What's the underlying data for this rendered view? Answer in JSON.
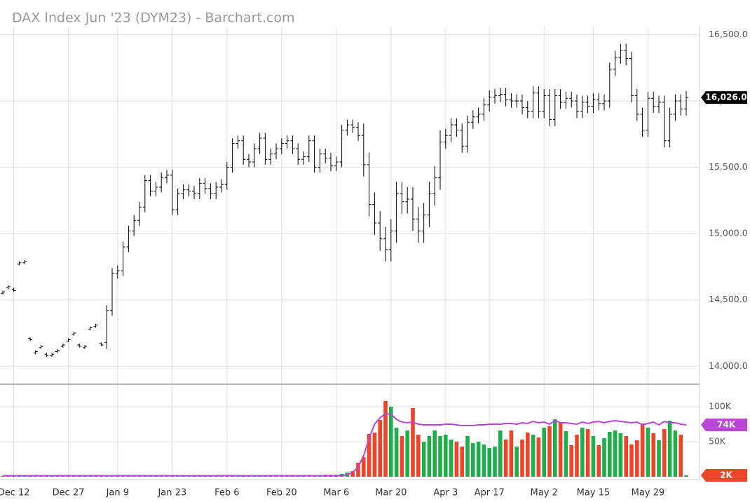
{
  "chart_data": {
    "type": "ohlc",
    "title": "DAX Index Jun '23 (DYM23) - Barchart.com",
    "categories": [
      null,
      null,
      "Dec 12",
      null,
      null,
      null,
      null,
      null,
      null,
      null,
      null,
      null,
      "Dec 27",
      null,
      null,
      null,
      null,
      null,
      null,
      null,
      null,
      "Jan 9",
      null,
      null,
      null,
      null,
      null,
      null,
      null,
      null,
      null,
      "Jan 23",
      null,
      null,
      null,
      null,
      null,
      null,
      null,
      null,
      null,
      "Feb 6",
      null,
      null,
      null,
      null,
      null,
      null,
      null,
      null,
      null,
      "Feb 20",
      null,
      null,
      null,
      null,
      null,
      null,
      null,
      null,
      null,
      "Mar 6",
      null,
      null,
      null,
      null,
      null,
      null,
      null,
      null,
      null,
      "Mar 20",
      null,
      null,
      null,
      null,
      null,
      null,
      null,
      null,
      null,
      "Apr 3",
      null,
      null,
      null,
      null,
      null,
      null,
      null,
      "Apr 17",
      null,
      null,
      null,
      null,
      null,
      null,
      null,
      null,
      null,
      "May 2",
      null,
      null,
      null,
      null,
      null,
      null,
      null,
      null,
      "May 15",
      null,
      null,
      null,
      null,
      null,
      null,
      null,
      null,
      null,
      "May 29",
      null,
      null,
      null,
      null,
      null,
      null,
      null
    ],
    "open": [
      14550,
      14590,
      14580,
      14770,
      14780,
      14210,
      14100,
      14140,
      14090,
      14080,
      14110,
      14150,
      14190,
      14240,
      14160,
      14140,
      14280,
      14300,
      14170,
      14180,
      14420,
      14700,
      14720,
      14900,
      15020,
      15100,
      15200,
      15400,
      15320,
      15350,
      15420,
      15440,
      15180,
      15300,
      15330,
      15320,
      15300,
      15380,
      15340,
      15300,
      15350,
      15370,
      15500,
      15680,
      15700,
      15560,
      15540,
      15640,
      15720,
      15560,
      15600,
      15640,
      15680,
      15700,
      15640,
      15560,
      15580,
      15700,
      15500,
      15600,
      15570,
      15510,
      15540,
      15780,
      15820,
      15800,
      15740,
      15520,
      15220,
      15080,
      14960,
      14880,
      15020,
      15300,
      15240,
      15260,
      15110,
      15020,
      15140,
      15300,
      15420,
      15690,
      15740,
      15820,
      15780,
      15660,
      15840,
      15880,
      15900,
      15970,
      16030,
      16040,
      16050,
      16010,
      16000,
      16000,
      15950,
      15920,
      16060,
      15920,
      16040,
      15860,
      16040,
      15990,
      16020,
      16000,
      15920,
      15990,
      15960,
      16010,
      15980,
      16000,
      16240,
      16330,
      16380,
      16320,
      16040,
      15900,
      15780,
      16020,
      15960,
      15990,
      15700,
      15900,
      16000,
      15940
    ],
    "high": [
      14570,
      14610,
      14590,
      14790,
      14800,
      14220,
      14120,
      14160,
      14100,
      14100,
      14130,
      14170,
      14210,
      14260,
      14170,
      14160,
      14300,
      14320,
      14180,
      14460,
      14740,
      14760,
      14940,
      15060,
      15140,
      15240,
      15440,
      15440,
      15390,
      15460,
      15480,
      15480,
      15340,
      15370,
      15370,
      15360,
      15420,
      15420,
      15380,
      15390,
      15410,
      15540,
      15720,
      15740,
      15740,
      15600,
      15680,
      15760,
      15760,
      15640,
      15680,
      15720,
      15740,
      15740,
      15680,
      15620,
      15740,
      15740,
      15640,
      15640,
      15610,
      15580,
      15820,
      15860,
      15860,
      15840,
      15830,
      15610,
      15310,
      15170,
      15050,
      15110,
      15390,
      15390,
      15350,
      15350,
      15200,
      15230,
      15390,
      15510,
      15780,
      15790,
      15870,
      15870,
      15830,
      15890,
      15930,
      15950,
      16020,
      16080,
      16090,
      16100,
      16100,
      16060,
      16050,
      16050,
      16000,
      16110,
      16110,
      16090,
      16090,
      16090,
      16090,
      16070,
      16070,
      16050,
      16040,
      16040,
      16060,
      16060,
      16050,
      16290,
      16380,
      16430,
      16430,
      16370,
      16090,
      15950,
      16070,
      16070,
      16040,
      16040,
      15950,
      16050,
      16050,
      16076
    ],
    "low": [
      14540,
      14580,
      14560,
      14760,
      14770,
      14190,
      14090,
      14130,
      14070,
      14070,
      14100,
      14140,
      14180,
      14230,
      14140,
      14130,
      14270,
      14290,
      14150,
      14130,
      14380,
      14660,
      14680,
      14860,
      14980,
      15060,
      15160,
      15280,
      15280,
      15310,
      15380,
      15140,
      15140,
      15260,
      15280,
      15260,
      15260,
      15300,
      15260,
      15260,
      15310,
      15330,
      15460,
      15640,
      15520,
      15500,
      15500,
      15600,
      15520,
      15520,
      15560,
      15600,
      15640,
      15600,
      15520,
      15520,
      15540,
      15460,
      15460,
      15530,
      15470,
      15470,
      15500,
      15740,
      15760,
      15700,
      15430,
      15130,
      14990,
      14870,
      14790,
      14790,
      14930,
      15150,
      15150,
      15020,
      14930,
      14930,
      15050,
      15210,
      15330,
      15640,
      15690,
      15730,
      15610,
      15610,
      15790,
      15830,
      15850,
      15920,
      15980,
      15990,
      15960,
      15950,
      15950,
      15900,
      15870,
      15870,
      15870,
      15870,
      15810,
      15810,
      15940,
      15940,
      15950,
      15870,
      15870,
      15910,
      15910,
      15930,
      15930,
      15950,
      16190,
      16280,
      16270,
      15990,
      15850,
      15730,
      15730,
      15910,
      15910,
      15650,
      15650,
      15850,
      15890,
      15890
    ],
    "close": [
      14560,
      14600,
      14570,
      14780,
      14790,
      14200,
      14110,
      14150,
      14080,
      14090,
      14120,
      14160,
      14200,
      14250,
      14150,
      14150,
      14290,
      14310,
      14160,
      14420,
      14700,
      14720,
      14900,
      15020,
      15100,
      15200,
      15400,
      15320,
      15350,
      15420,
      15440,
      15180,
      15300,
      15330,
      15320,
      15300,
      15380,
      15340,
      15300,
      15350,
      15370,
      15500,
      15680,
      15700,
      15560,
      15540,
      15640,
      15720,
      15560,
      15600,
      15640,
      15680,
      15700,
      15640,
      15560,
      15580,
      15700,
      15500,
      15600,
      15570,
      15510,
      15540,
      15780,
      15820,
      15800,
      15740,
      15520,
      15220,
      15080,
      14960,
      14880,
      15020,
      15300,
      15240,
      15260,
      15110,
      15020,
      15140,
      15300,
      15420,
      15690,
      15740,
      15820,
      15780,
      15660,
      15840,
      15880,
      15900,
      15970,
      16030,
      16040,
      16050,
      16010,
      16000,
      16000,
      15950,
      15920,
      16060,
      15920,
      16040,
      15860,
      16040,
      15990,
      16020,
      16000,
      15920,
      15990,
      15960,
      16010,
      15980,
      16000,
      16240,
      16330,
      16380,
      16320,
      16040,
      15900,
      15780,
      16020,
      15960,
      15990,
      15700,
      15900,
      16000,
      15940,
      16026
    ],
    "color": "#000000",
    "ylim": [
      13880,
      16550
    ],
    "yticks": [
      {
        "value": 14000,
        "label": "14,000.0"
      },
      {
        "value": 14500,
        "label": "14,500.0"
      },
      {
        "value": 15000,
        "label": "15,000.0"
      },
      {
        "value": 15500,
        "label": "15,500.0"
      },
      {
        "value": 16000,
        "label": "16,000.0"
      },
      {
        "value": 16500,
        "label": "16,500.0"
      }
    ],
    "price_badge": {
      "value": 16026,
      "label": "16,026.0"
    },
    "grid": true,
    "volume": {
      "values": [
        1000,
        1000,
        1000,
        1000,
        1000,
        1000,
        1000,
        1000,
        1000,
        1000,
        1000,
        1000,
        1000,
        1000,
        1000,
        1000,
        1000,
        1000,
        1000,
        1000,
        1000,
        1000,
        1000,
        1000,
        1000,
        1000,
        1000,
        1000,
        1000,
        1000,
        1000,
        1000,
        1000,
        1000,
        1000,
        1000,
        1000,
        1000,
        1000,
        1000,
        1000,
        1000,
        1000,
        1000,
        1000,
        1000,
        1000,
        1000,
        1000,
        1000,
        1000,
        1000,
        1000,
        1000,
        1000,
        1000,
        1000,
        1000,
        1000,
        3000,
        3000,
        3000,
        4000,
        6000,
        8000,
        20000,
        28000,
        61000,
        63000,
        81000,
        108000,
        100000,
        70000,
        58000,
        66000,
        98000,
        60000,
        50000,
        58000,
        66000,
        58000,
        60000,
        53000,
        50000,
        43000,
        58000,
        48000,
        50000,
        46000,
        41000,
        43000,
        66000,
        53000,
        66000,
        43000,
        53000,
        63000,
        60000,
        56000,
        70000,
        72000,
        82000,
        78000,
        65000,
        45000,
        60000,
        70000,
        68000,
        58000,
        45000,
        55000,
        64000,
        66000,
        62000,
        58000,
        46000,
        52000,
        76000,
        70000,
        62000,
        52000,
        68000,
        80000,
        66000,
        60000,
        2000
      ],
      "up_color": "#1fae4b",
      "down_color": "#f0442a",
      "ylim": [
        0,
        130000
      ],
      "yticks": [
        {
          "value": 50000,
          "label": "50K"
        },
        {
          "value": 100000,
          "label": "100K"
        }
      ],
      "badge": {
        "value": 2000,
        "label": "2K"
      }
    },
    "ma": {
      "values": [
        1500,
        1500,
        1500,
        1500,
        1500,
        1500,
        1500,
        1500,
        1500,
        1500,
        1500,
        1500,
        1500,
        1500,
        1500,
        1500,
        1500,
        1500,
        1500,
        1500,
        1500,
        1500,
        1500,
        1500,
        1500,
        1500,
        1500,
        1500,
        1500,
        1500,
        1500,
        1500,
        1500,
        1500,
        1500,
        1500,
        1500,
        1500,
        1500,
        1500,
        1500,
        1500,
        1500,
        1500,
        1500,
        1500,
        1500,
        1500,
        1500,
        1500,
        1500,
        1500,
        1500,
        1500,
        1500,
        1500,
        1500,
        1500,
        1500,
        1500,
        1500,
        1500,
        1500,
        3000,
        6000,
        14000,
        30000,
        55000,
        75000,
        84000,
        90000,
        89000,
        82000,
        78000,
        77000,
        78000,
        75000,
        74000,
        74000,
        74000,
        74000,
        75000,
        75000,
        74000,
        73000,
        73000,
        73000,
        74000,
        74000,
        75000,
        75000,
        75000,
        76000,
        76000,
        75000,
        77000,
        76000,
        79000,
        77000,
        78000,
        75000,
        80000,
        77000,
        77000,
        76000,
        75000,
        78000,
        76000,
        78000,
        79000,
        77000,
        79000,
        80000,
        79000,
        78000,
        77000,
        78000,
        74000,
        76000,
        78000,
        74000,
        79000,
        77000,
        77000,
        75000,
        74000
      ],
      "color": "#b946d4",
      "badge": {
        "value": 74000,
        "label": "74K"
      }
    }
  }
}
